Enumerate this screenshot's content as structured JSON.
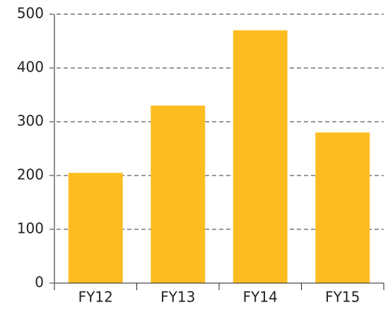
{
  "chart_data": {
    "type": "bar",
    "categories": [
      "FY12",
      "FY13",
      "FY14",
      "FY15"
    ],
    "values": [
      205,
      330,
      470,
      280
    ],
    "color": "#fdbd21",
    "ylim": [
      0,
      500
    ],
    "yticks": [
      0,
      100,
      200,
      300,
      400,
      500
    ],
    "grid": true
  }
}
